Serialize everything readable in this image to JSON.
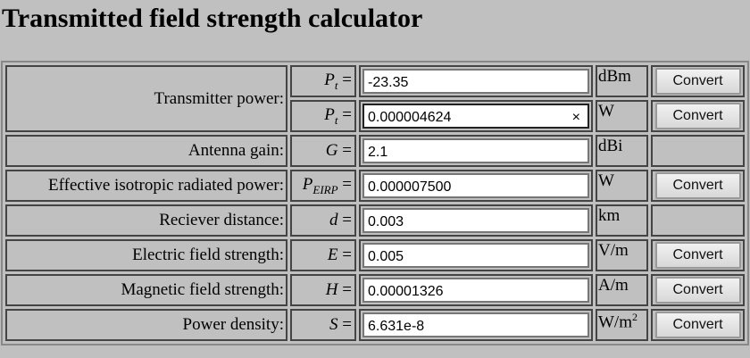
{
  "title": "Transmitted field strength calculator",
  "convert_label": "Convert",
  "rows": [
    {
      "label": "Transmitter power:",
      "symbol": "P",
      "sub": "t",
      "value": "-23.35",
      "unit": "dBm"
    },
    {
      "symbol": "P",
      "sub": "t",
      "value": "0.000004624",
      "unit": "W",
      "clear_icon": "×"
    },
    {
      "label": "Antenna gain:",
      "symbol": "G",
      "value": "2.1",
      "unit": "dBi"
    },
    {
      "label": "Effective isotropic radiated power:",
      "symbol": "P",
      "sub": "EIRP",
      "value": "0.000007500",
      "unit": "W"
    },
    {
      "label": "Reciever distance:",
      "symbol": "d",
      "value": "0.003",
      "unit": "km"
    },
    {
      "label": "Electric field strength:",
      "symbol": "E",
      "value": "0.005",
      "unit": "V/m"
    },
    {
      "label": "Magnetic field strength:",
      "symbol": "H",
      "value": "0.00001326",
      "unit": "A/m"
    },
    {
      "label": "Power density:",
      "symbol": "S",
      "value": "6.631e-8",
      "unit": "W/m",
      "unit_sup": "2"
    }
  ],
  "eq": "="
}
